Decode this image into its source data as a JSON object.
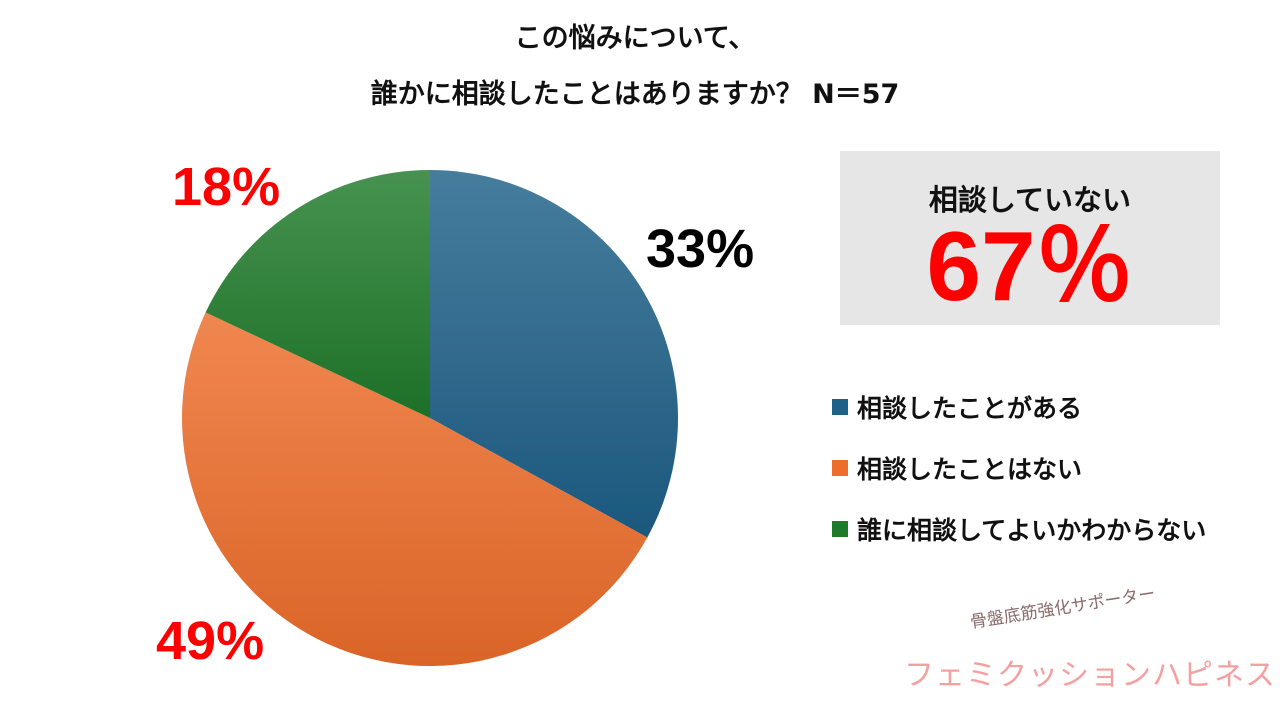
{
  "title": {
    "line1": "この悩みについて、",
    "line2": "誰かに相談したことはありますか？ N＝57"
  },
  "callout": {
    "label": "相談していない",
    "value": "67％",
    "bg_color": "#e6e6e6",
    "value_color": "#ff0000"
  },
  "chart_data": {
    "type": "pie",
    "title": "この悩みについて、誰かに相談したことはありますか？ N＝57",
    "slices": [
      {
        "name": "相談したことがある",
        "value": 33,
        "label": "33%",
        "color": "#1d6088",
        "label_color": "#000000"
      },
      {
        "name": "相談したことはない",
        "value": 49,
        "label": "49%",
        "color": "#ed6d2a",
        "label_color": "#ff0000"
      },
      {
        "name": "誰に相談してよいかわからない",
        "value": 18,
        "label": "18%",
        "color": "#1f7a2a",
        "label_color": "#ff0000"
      }
    ],
    "legend_position": "right"
  },
  "logo": {
    "sub": "骨盤底筋強化サポーター",
    "main": "フェミクッションハピネス",
    "main_color": "#f5a0a0"
  }
}
